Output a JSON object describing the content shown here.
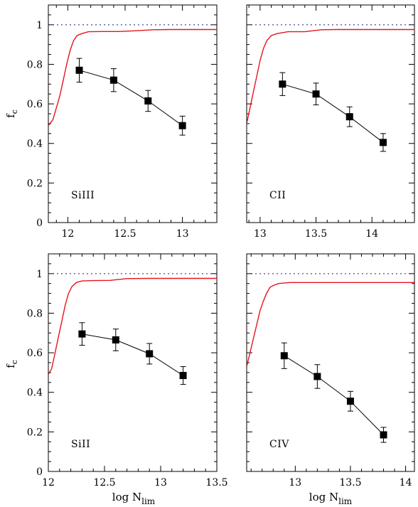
{
  "colors": {
    "model_curve": "#e8141e",
    "reference_line": "#1a1a8c",
    "data_points": "#000000",
    "frame": "#000000"
  },
  "figure": {
    "y_axis_label_main": "f",
    "y_axis_label_sub": "c",
    "x_axis_label_main": "log  N",
    "x_axis_label_sub": "lim"
  },
  "chart_data": [
    {
      "type": "line",
      "panel": "top-left",
      "annotation": "SiIII",
      "xlim": [
        11.83,
        13.3
      ],
      "ylim": [
        0,
        1.1
      ],
      "xticks": [
        12,
        12.5,
        13
      ],
      "xtick_labels": [
        "12",
        "12.5",
        "13"
      ],
      "yticks": [
        0,
        0.2,
        0.4,
        0.6,
        0.8,
        1
      ],
      "ytick_labels": [
        "0",
        "0.2",
        "0.4",
        "0.6",
        "0.8",
        "1"
      ],
      "show_x_tick_labels": true,
      "show_y_tick_labels": true,
      "reference_line": 1.0,
      "model_curve": {
        "x": [
          11.83,
          11.87,
          11.9,
          11.93,
          11.96,
          11.99,
          12.02,
          12.05,
          12.08,
          12.12,
          12.18,
          12.3,
          12.45,
          12.6,
          12.75,
          12.9,
          13.05,
          13.3
        ],
        "y": [
          0.49,
          0.52,
          0.58,
          0.64,
          0.72,
          0.8,
          0.87,
          0.92,
          0.945,
          0.955,
          0.965,
          0.966,
          0.966,
          0.97,
          0.975,
          0.976,
          0.976,
          0.976
        ]
      },
      "points": {
        "x": [
          12.1,
          12.4,
          12.7,
          13.0
        ],
        "y": [
          0.77,
          0.72,
          0.615,
          0.49
        ],
        "err": [
          0.06,
          0.058,
          0.053,
          0.048
        ]
      }
    },
    {
      "type": "line",
      "panel": "top-right",
      "annotation": "CII",
      "xlim": [
        12.88,
        14.38
      ],
      "ylim": [
        0,
        1.1
      ],
      "xticks": [
        13,
        13.5,
        14
      ],
      "xtick_labels": [
        "13",
        "13.5",
        "14"
      ],
      "yticks": [
        0,
        0.2,
        0.4,
        0.6,
        0.8,
        1
      ],
      "ytick_labels": [
        "0",
        "0.2",
        "0.4",
        "0.6",
        "0.8",
        "1"
      ],
      "show_x_tick_labels": true,
      "show_y_tick_labels": false,
      "reference_line": 1.0,
      "model_curve": {
        "x": [
          12.88,
          12.91,
          12.94,
          12.97,
          13.0,
          13.03,
          13.06,
          13.1,
          13.15,
          13.25,
          13.4,
          13.55,
          13.7,
          13.9,
          14.1,
          14.38
        ],
        "y": [
          0.5,
          0.58,
          0.66,
          0.74,
          0.82,
          0.88,
          0.92,
          0.945,
          0.955,
          0.965,
          0.965,
          0.975,
          0.976,
          0.976,
          0.976,
          0.976
        ]
      },
      "points": {
        "x": [
          13.2,
          13.5,
          13.8,
          14.1
        ],
        "y": [
          0.7,
          0.65,
          0.535,
          0.405
        ],
        "err": [
          0.058,
          0.055,
          0.05,
          0.045
        ]
      }
    },
    {
      "type": "line",
      "panel": "bottom-left",
      "annotation": "SiII",
      "xlim": [
        12.0,
        13.5
      ],
      "ylim": [
        0,
        1.1
      ],
      "xticks": [
        12,
        12.5,
        13,
        13.5
      ],
      "xtick_labels": [
        "12",
        "12.5",
        "13",
        "13.5"
      ],
      "yticks": [
        0,
        0.2,
        0.4,
        0.6,
        0.8,
        1
      ],
      "ytick_labels": [
        "0",
        "0.2",
        "0.4",
        "0.6",
        "0.8",
        "1"
      ],
      "show_x_tick_labels": true,
      "show_y_tick_labels": true,
      "reference_line": 1.0,
      "model_curve": {
        "x": [
          12.0,
          12.03,
          12.06,
          12.09,
          12.12,
          12.15,
          12.18,
          12.21,
          12.25,
          12.3,
          12.4,
          12.55,
          12.7,
          12.9,
          13.1,
          13.5
        ],
        "y": [
          0.49,
          0.52,
          0.6,
          0.68,
          0.76,
          0.84,
          0.9,
          0.935,
          0.955,
          0.963,
          0.965,
          0.966,
          0.975,
          0.976,
          0.976,
          0.976
        ]
      },
      "points": {
        "x": [
          12.3,
          12.6,
          12.9,
          13.2
        ],
        "y": [
          0.695,
          0.665,
          0.595,
          0.485
        ],
        "err": [
          0.057,
          0.055,
          0.052,
          0.045
        ]
      }
    },
    {
      "type": "line",
      "panel": "bottom-right",
      "annotation": "CIV",
      "xlim": [
        12.56,
        14.08
      ],
      "ylim": [
        0,
        1.1
      ],
      "xticks": [
        13,
        13.5,
        14
      ],
      "xtick_labels": [
        "13",
        "13.5",
        "14"
      ],
      "yticks": [
        0,
        0.2,
        0.4,
        0.6,
        0.8,
        1
      ],
      "ytick_labels": [
        "0",
        "0.2",
        "0.4",
        "0.6",
        "0.8",
        "1"
      ],
      "show_x_tick_labels": true,
      "show_y_tick_labels": false,
      "reference_line": 1.0,
      "model_curve": {
        "x": [
          12.56,
          12.59,
          12.62,
          12.65,
          12.68,
          12.71,
          12.74,
          12.77,
          12.8,
          12.85,
          12.95,
          13.1,
          13.4,
          13.8,
          14.08
        ],
        "y": [
          0.53,
          0.6,
          0.67,
          0.74,
          0.81,
          0.86,
          0.9,
          0.93,
          0.94,
          0.95,
          0.955,
          0.955,
          0.955,
          0.955,
          0.955
        ]
      },
      "points": {
        "x": [
          12.9,
          13.2,
          13.5,
          13.8
        ],
        "y": [
          0.585,
          0.48,
          0.355,
          0.185
        ],
        "err": [
          0.065,
          0.06,
          0.05,
          0.038
        ]
      }
    }
  ]
}
